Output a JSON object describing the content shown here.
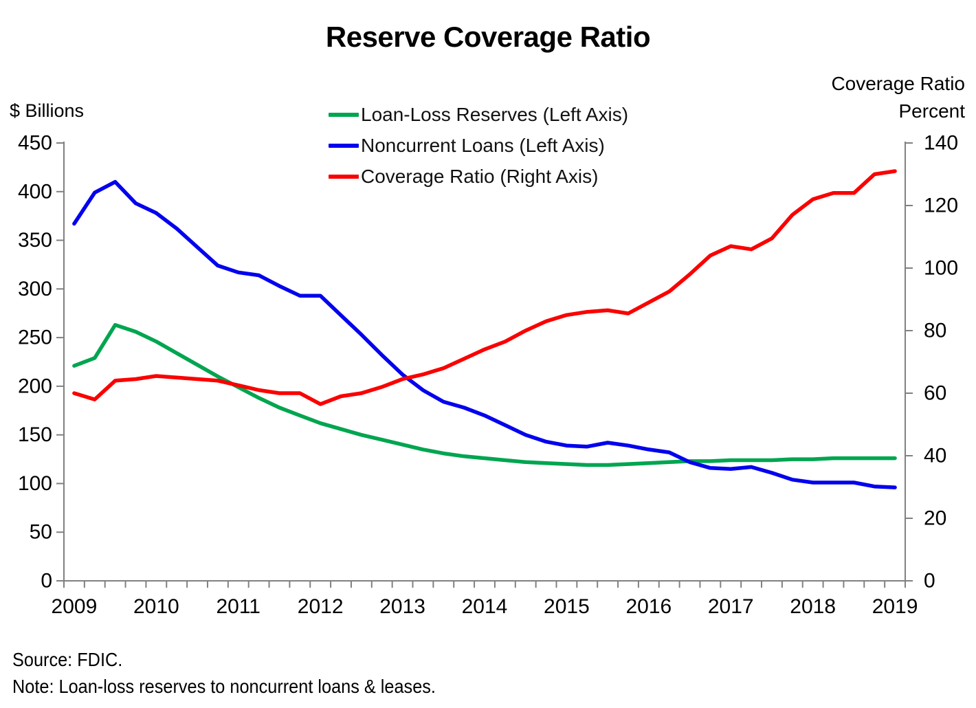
{
  "title": "Reserve Coverage Ratio",
  "left_axis": {
    "title": "$ Billions",
    "ticks": [
      0,
      50,
      100,
      150,
      200,
      250,
      300,
      350,
      400,
      450
    ],
    "max": 450
  },
  "right_axis": {
    "title_line1": "Coverage Ratio",
    "title_line2": "Percent",
    "ticks": [
      0,
      20,
      40,
      60,
      80,
      100,
      120,
      140
    ],
    "max": 140
  },
  "x_axis": {
    "years": [
      "2009",
      "2010",
      "2011",
      "2012",
      "2013",
      "2014",
      "2015",
      "2016",
      "2017",
      "2018",
      "2019"
    ],
    "frequency": "quarterly"
  },
  "legend": {
    "items": [
      {
        "label": "Loan-Loss Reserves (Left Axis)",
        "color": "#00A550"
      },
      {
        "label": "Noncurrent Loans (Left Axis)",
        "color": "#0202EE"
      },
      {
        "label": "Coverage Ratio (Right Axis)",
        "color": "#FA0000"
      }
    ]
  },
  "footnotes": {
    "source": "Source: FDIC.",
    "note": "Note: Loan-loss reserves to noncurrent loans & leases."
  },
  "chart_data": {
    "type": "line",
    "title": "Reserve Coverage Ratio",
    "x_start": "2009Q1",
    "x_end": "2019Q1",
    "x_frequency": "quarterly",
    "grid": false,
    "legend_position": "top-center",
    "left_ylabel": "$ Billions",
    "right_ylabel": "Coverage Ratio Percent",
    "left_ylim": [
      0,
      450
    ],
    "right_ylim": [
      0,
      140
    ],
    "series": [
      {
        "name": "Loan-Loss Reserves (Left Axis)",
        "axis": "left",
        "color": "#00A550",
        "values": [
          221,
          229,
          263,
          256,
          246,
          234,
          222,
          210,
          199,
          188,
          178,
          170,
          162,
          156,
          150,
          145,
          140,
          135,
          131,
          128,
          126,
          124,
          122,
          121,
          120,
          119,
          119,
          120,
          121,
          122,
          123,
          123,
          124,
          124,
          124,
          125,
          125,
          126,
          126,
          126,
          126
        ]
      },
      {
        "name": "Noncurrent Loans (Left Axis)",
        "axis": "left",
        "color": "#0202EE",
        "values": [
          367,
          399,
          410,
          388,
          378,
          362,
          343,
          324,
          317,
          314,
          303,
          293,
          293,
          273,
          253,
          232,
          212,
          196,
          184,
          178,
          170,
          160,
          150,
          143,
          139,
          138,
          142,
          139,
          135,
          132,
          122,
          116,
          115,
          117,
          111,
          104,
          101,
          101,
          101,
          97,
          96
        ]
      },
      {
        "name": "Coverage Ratio (Right Axis)",
        "axis": "right",
        "color": "#FA0000",
        "values": [
          60,
          58,
          64,
          64.5,
          65.5,
          65,
          64.5,
          64,
          62.5,
          61,
          60,
          60,
          56.5,
          59,
          60,
          62,
          64.5,
          66,
          68,
          71,
          74,
          76.5,
          80,
          83,
          85,
          86,
          86.5,
          85.5,
          89,
          92.5,
          98,
          104,
          107,
          106,
          109.5,
          117,
          122,
          124,
          124,
          130,
          131
        ]
      }
    ]
  }
}
